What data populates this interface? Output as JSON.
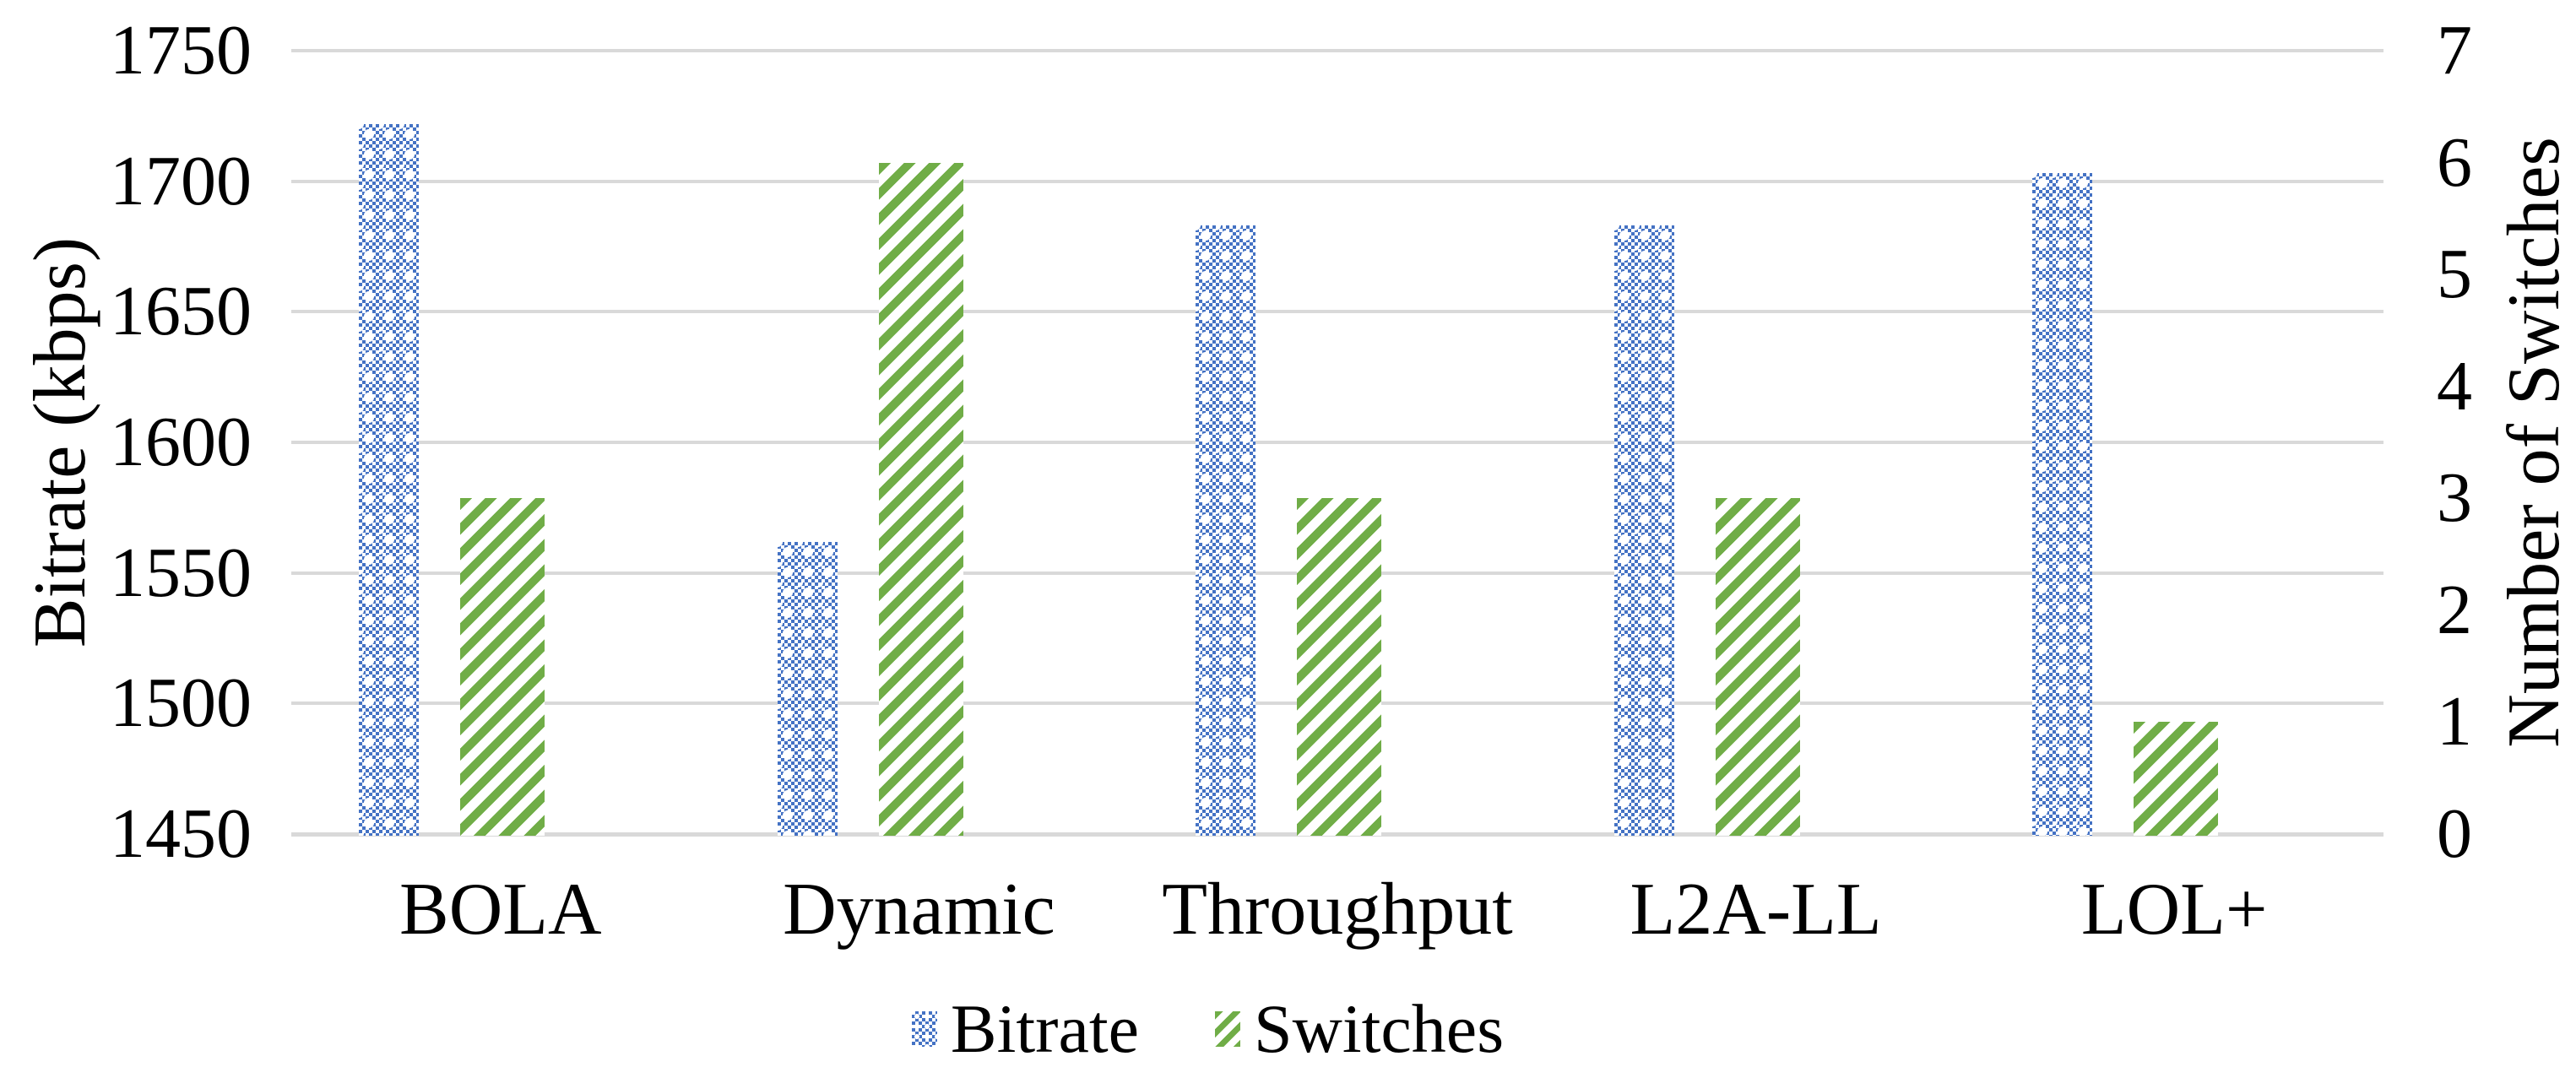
{
  "chart_data": {
    "type": "bar",
    "title": "",
    "categories": [
      "BOLA",
      "Dynamic",
      "Throughput",
      "L2A-LL",
      "LOL+"
    ],
    "series": [
      {
        "name": "Bitrate",
        "axis": "left",
        "color": "#4472C4",
        "pattern": "checker-dot",
        "values": [
          1722,
          1562,
          1683,
          1683,
          1703
        ]
      },
      {
        "name": "Switches",
        "axis": "right",
        "color": "#70AD47",
        "pattern": "diagonal-stripe",
        "values": [
          3,
          6,
          3,
          3,
          1
        ]
      }
    ],
    "left_axis": {
      "label": "Bitrate (kbps)",
      "min": 1450,
      "max": 1750,
      "step": 50,
      "ticks": [
        1750,
        1700,
        1650,
        1600,
        1550,
        1500,
        1450
      ]
    },
    "right_axis": {
      "label": "Number of Switches",
      "min": 0,
      "max": 7,
      "step": 1,
      "ticks": [
        7,
        6,
        5,
        4,
        3,
        2,
        1,
        0
      ]
    },
    "grid": true,
    "gridline_color": "#d9d9d9",
    "text_color": "#000000",
    "background": "#ffffff",
    "legend_position": "bottom"
  },
  "legend": {
    "items": [
      {
        "label": "Bitrate"
      },
      {
        "label": "Switches"
      }
    ]
  }
}
